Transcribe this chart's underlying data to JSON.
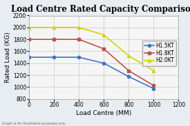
{
  "title": "Load Centre Rated Capacity Comparison",
  "xlabel": "Load Centre (MM)",
  "ylabel": "Rated Load (KG)",
  "footnote": "Graph is for illustrative purposes only",
  "xlim": [
    0,
    1200
  ],
  "ylim": [
    800,
    2200
  ],
  "xticks": [
    0,
    200,
    400,
    600,
    800,
    1000,
    1200
  ],
  "yticks": [
    800,
    1000,
    1200,
    1400,
    1600,
    1800,
    2000,
    2200
  ],
  "series": [
    {
      "label": "H1.5KT",
      "x": [
        0,
        200,
        400,
        600,
        800,
        1000
      ],
      "y": [
        1500,
        1500,
        1500,
        1400,
        1175,
        975
      ],
      "color": "#4472C4",
      "marker": "o",
      "marker_color": "#4472C4",
      "linewidth": 1.2
    },
    {
      "label": "H1.8KT",
      "x": [
        0,
        200,
        400,
        600,
        800,
        1000
      ],
      "y": [
        1800,
        1800,
        1800,
        1640,
        1275,
        1025
      ],
      "color": "#C0504D",
      "marker": "s",
      "marker_color": "#C0504D",
      "linewidth": 1.2
    },
    {
      "label": "H2.0KT",
      "x": [
        0,
        200,
        400,
        600,
        800,
        1000
      ],
      "y": [
        2000,
        2000,
        2000,
        1875,
        1525,
        1275
      ],
      "color": "#CED600",
      "marker": "^",
      "marker_color": "#CED600",
      "linewidth": 1.2
    }
  ],
  "fig_background": "#E8EDF2",
  "plot_bg_color": "#F5F5F5",
  "title_fontsize": 8.5,
  "label_fontsize": 6.5,
  "tick_fontsize": 5.5,
  "legend_fontsize": 5.5
}
